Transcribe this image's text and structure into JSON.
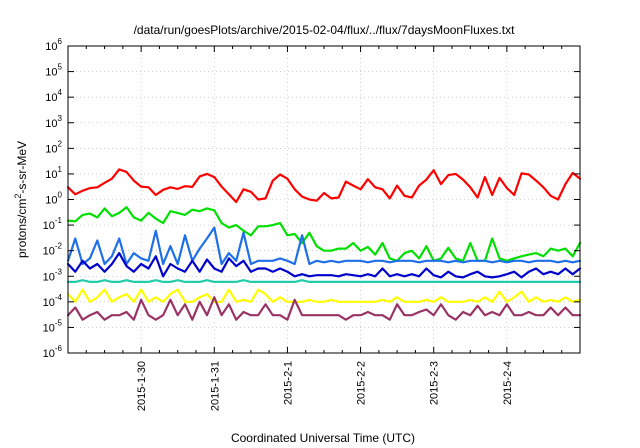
{
  "chart_data": {
    "type": "line",
    "title": "/data/run/goesPlots/archive/2015-02-04/flux/../flux/7daysMoonFluxes.txt",
    "xlabel": "Coordinated Universal Time (UTC)",
    "ylabel": "protons/cm²-s-sr-MeV",
    "yscale": "log",
    "ylim": [
      1e-06,
      1000000.0
    ],
    "xlim": [
      0,
      7
    ],
    "grid": true,
    "x_ticks": [
      {
        "x": 1,
        "label": "2015-1-30"
      },
      {
        "x": 2,
        "label": "2015-1-31"
      },
      {
        "x": 3,
        "label": "2015-2-1"
      },
      {
        "x": 4,
        "label": "2015-2-2"
      },
      {
        "x": 5,
        "label": "2015-2-3"
      },
      {
        "x": 6,
        "label": "2015-2-4"
      }
    ],
    "y_ticks": [
      {
        "value": 1e-06,
        "base": "10",
        "exp": "-6"
      },
      {
        "value": 1e-05,
        "base": "10",
        "exp": "-5"
      },
      {
        "value": 0.0001,
        "base": "10",
        "exp": "-4"
      },
      {
        "value": 0.001,
        "base": "10",
        "exp": "-3"
      },
      {
        "value": 0.01,
        "base": "10",
        "exp": "-2"
      },
      {
        "value": 0.1,
        "base": "10",
        "exp": "-1"
      },
      {
        "value": 1,
        "base": "10",
        "exp": "0"
      },
      {
        "value": 10,
        "base": "10",
        "exp": "1"
      },
      {
        "value": 100,
        "base": "10",
        "exp": "2"
      },
      {
        "value": 1000,
        "base": "10",
        "exp": "3"
      },
      {
        "value": 10000,
        "base": "10",
        "exp": "4"
      },
      {
        "value": 100000,
        "base": "10",
        "exp": "5"
      },
      {
        "value": 1000000,
        "base": "10",
        "exp": "6"
      }
    ],
    "x_points": [
      0,
      0.1,
      0.2,
      0.3,
      0.4,
      0.5,
      0.6,
      0.7,
      0.8,
      0.9,
      1,
      1.1,
      1.2,
      1.3,
      1.4,
      1.5,
      1.6,
      1.7,
      1.8,
      1.9,
      2,
      2.1,
      2.2,
      2.3,
      2.4,
      2.5,
      2.6,
      2.7,
      2.8,
      2.9,
      3,
      3.1,
      3.2,
      3.3,
      3.4,
      3.5,
      3.6,
      3.7,
      3.8,
      3.9,
      4,
      4.1,
      4.2,
      4.3,
      4.4,
      4.5,
      4.6,
      4.7,
      4.8,
      4.9,
      5,
      5.1,
      5.2,
      5.3,
      5.4,
      5.5,
      5.6,
      5.7,
      5.8,
      5.9,
      6,
      6.1,
      6.2,
      6.3,
      6.4,
      6.5,
      6.6,
      6.7,
      6.8,
      6.9,
      7
    ],
    "series": [
      {
        "color": "#ff0000",
        "values": [
          3.0,
          1.6,
          2.2,
          2.8,
          3.0,
          4.5,
          6.5,
          15,
          12,
          5.5,
          3.2,
          3.0,
          1.5,
          2.4,
          3.0,
          2.6,
          3.3,
          3.1,
          8,
          10,
          7.5,
          3.2,
          1.6,
          0.8,
          2.5,
          2.0,
          1.0,
          1.1,
          5.5,
          9.5,
          6.5,
          2.5,
          1.3,
          1.0,
          0.9,
          1.8,
          1.1,
          1.2,
          5.0,
          3.5,
          2.5,
          6.2,
          3.0,
          2.5,
          1.1,
          3.5,
          1.4,
          1.2,
          3.5,
          6.0,
          14,
          4.0,
          9,
          10,
          6.0,
          3.0,
          1.2,
          7.5,
          1.5,
          7.0,
          2.8,
          1.5,
          10.5,
          9.5,
          5.5,
          3.0,
          1.4,
          1.0,
          4.0,
          11,
          6.5
        ]
      },
      {
        "color": "#00e000",
        "values": [
          0.15,
          0.14,
          0.25,
          0.28,
          0.2,
          0.45,
          0.22,
          0.3,
          0.5,
          0.2,
          0.15,
          0.3,
          0.18,
          0.12,
          0.35,
          0.3,
          0.25,
          0.4,
          0.35,
          0.45,
          0.38,
          0.12,
          0.08,
          0.1,
          0.06,
          0.04,
          0.09,
          0.09,
          0.1,
          0.12,
          0.04,
          0.045,
          0.02,
          0.05,
          0.015,
          0.01,
          0.01,
          0.012,
          0.012,
          0.02,
          0.01,
          0.014,
          0.007,
          0.02,
          0.005,
          0.004,
          0.008,
          0.01,
          0.005,
          0.015,
          0.004,
          0.005,
          0.013,
          0.005,
          0.004,
          0.02,
          0.004,
          0.004,
          0.03,
          0.005,
          0.004,
          0.005,
          0.006,
          0.007,
          0.008,
          0.006,
          0.012,
          0.01,
          0.012,
          0.006,
          0.02
        ]
      },
      {
        "color": "#1e6fe8",
        "values": [
          0.004,
          0.03,
          0.003,
          0.005,
          0.025,
          0.003,
          0.006,
          0.03,
          0.003,
          0.008,
          0.005,
          0.004,
          0.06,
          0.003,
          0.015,
          0.003,
          0.04,
          0.004,
          0.012,
          0.03,
          0.08,
          0.003,
          0.008,
          0.004,
          0.05,
          0.003,
          0.004,
          0.004,
          0.004,
          0.005,
          0.004,
          0.003,
          0.04,
          0.003,
          0.004,
          0.0035,
          0.004,
          0.0035,
          0.004,
          0.004,
          0.004,
          0.0035,
          0.004,
          0.004,
          0.0035,
          0.004,
          0.004,
          0.004,
          0.0035,
          0.004,
          0.004,
          0.004,
          0.0035,
          0.004,
          0.0035,
          0.004,
          0.004,
          0.004,
          0.0035,
          0.004,
          0.0035,
          0.004,
          0.004,
          0.0035,
          0.004,
          0.004,
          0.004,
          0.0035,
          0.004,
          0.0035,
          0.004
        ]
      },
      {
        "color": "#0000cc",
        "values": [
          0.003,
          0.0015,
          0.004,
          0.002,
          0.003,
          0.0015,
          0.003,
          0.008,
          0.0025,
          0.0015,
          0.003,
          0.002,
          0.006,
          0.001,
          0.003,
          0.002,
          0.0015,
          0.004,
          0.0015,
          0.0045,
          0.002,
          0.0015,
          0.005,
          0.0025,
          0.004,
          0.0015,
          0.002,
          0.002,
          0.0015,
          0.002,
          0.0015,
          0.001,
          0.0012,
          0.001,
          0.0011,
          0.0011,
          0.0011,
          0.001,
          0.0012,
          0.0011,
          0.001,
          0.0012,
          0.001,
          0.002,
          0.001,
          0.0012,
          0.001,
          0.0012,
          0.001,
          0.002,
          0.0011,
          0.0009,
          0.0015,
          0.001,
          0.0009,
          0.0012,
          0.0015,
          0.001,
          0.0009,
          0.001,
          0.0012,
          0.0015,
          0.0009,
          0.0015,
          0.002,
          0.0012,
          0.0015,
          0.0012,
          0.002,
          0.0012,
          0.002
        ]
      },
      {
        "color": "#22ccaa",
        "values": [
          0.0006,
          0.0006,
          0.0007,
          0.0006,
          0.0006,
          0.0007,
          0.0006,
          0.0006,
          0.0007,
          0.0006,
          0.0006,
          0.0006,
          0.0007,
          0.0006,
          0.0006,
          0.0007,
          0.0006,
          0.0006,
          0.0006,
          0.0007,
          0.0006,
          0.0006,
          0.0006,
          0.0006,
          0.0007,
          0.0006,
          0.0006,
          0.0006,
          0.0006,
          0.0006,
          0.0006,
          0.0006,
          0.0007,
          0.0006,
          0.0006,
          0.0006,
          0.0006,
          0.0006,
          0.0006,
          0.0006,
          0.0006,
          0.0006,
          0.0006,
          0.0006,
          0.0006,
          0.0006,
          0.0006,
          0.0006,
          0.0006,
          0.0006,
          0.0006,
          0.0006,
          0.0006,
          0.0006,
          0.0006,
          0.0006,
          0.0006,
          0.0006,
          0.0006,
          0.0006,
          0.0006,
          0.0006,
          0.0006,
          0.0006,
          0.0006,
          0.0006,
          0.0006,
          0.0006,
          0.0006,
          0.0006,
          0.0006
        ]
      },
      {
        "color": "#ffff00",
        "values": [
          0.0002,
          0.0001,
          0.0003,
          0.0001,
          0.00015,
          0.0003,
          0.0001,
          0.00015,
          0.0002,
          0.0001,
          0.0003,
          0.0001,
          0.00015,
          0.0001,
          0.0002,
          0.0003,
          0.0001,
          0.0001,
          0.00015,
          0.0002,
          0.0001,
          0.0001,
          0.0003,
          0.0001,
          0.00012,
          0.0001,
          0.0003,
          0.0002,
          0.0001,
          0.00015,
          0.0001,
          0.0001,
          0.0001,
          0.00012,
          0.0001,
          0.0001,
          0.00012,
          0.0001,
          0.0001,
          0.0001,
          0.0001,
          0.0001,
          0.0001,
          0.00012,
          0.0001,
          0.00015,
          0.0001,
          0.0001,
          0.0001,
          0.00012,
          0.0001,
          0.00015,
          0.0001,
          0.0001,
          0.0001,
          0.00012,
          0.0001,
          0.00015,
          0.0001,
          0.00025,
          0.0001,
          0.00015,
          0.00025,
          0.0001,
          0.00015,
          0.0001,
          0.00012,
          0.0001,
          0.00015,
          0.0001,
          0.00012
        ]
      },
      {
        "color": "#993366",
        "values": [
          3e-05,
          6e-05,
          2e-05,
          3e-05,
          4e-05,
          2e-05,
          3e-05,
          3e-05,
          4e-05,
          2e-05,
          0.00012,
          3e-05,
          2e-05,
          3e-05,
          0.00012,
          3e-05,
          8e-05,
          2e-05,
          0.0001,
          3e-05,
          0.00015,
          3e-05,
          8e-05,
          2e-05,
          4e-05,
          3e-05,
          3e-05,
          8e-05,
          3e-05,
          3e-05,
          2e-05,
          0.00012,
          3e-05,
          3e-05,
          3e-05,
          3e-05,
          3e-05,
          3e-05,
          2e-05,
          3e-05,
          3e-05,
          4e-05,
          3e-05,
          3e-05,
          2e-05,
          8e-05,
          3e-05,
          3e-05,
          4e-05,
          5e-05,
          3e-05,
          8e-05,
          3e-05,
          2e-05,
          4e-05,
          3e-05,
          7e-05,
          3e-05,
          4e-05,
          3e-05,
          8e-05,
          3e-05,
          3e-05,
          4e-05,
          3e-05,
          3e-05,
          6e-05,
          3e-05,
          6e-05,
          3e-05,
          3e-05
        ]
      }
    ]
  }
}
